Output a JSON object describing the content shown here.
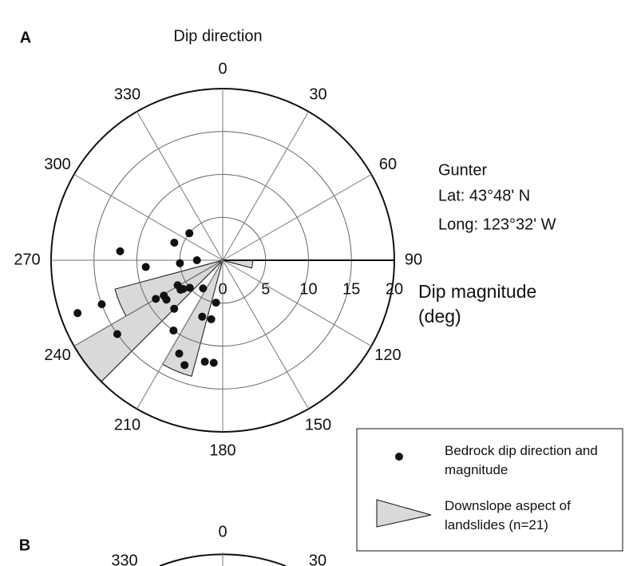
{
  "chart_data": {
    "type": "polar",
    "panel": "A",
    "title": "Dip direction",
    "theta_ticks": [
      0,
      30,
      60,
      90,
      120,
      150,
      180,
      210,
      240,
      270,
      300,
      330
    ],
    "rlim": [
      0,
      20
    ],
    "rticks": [
      0,
      5,
      10,
      15,
      20
    ],
    "r_label": "Dip magnitude (deg)",
    "annotations": [
      "Gunter",
      "Lat: 43°48' N",
      "Long: 123°32' W"
    ],
    "series": [
      {
        "name": "Bedrock dip direction and magnitude",
        "color": "#111111",
        "theta": [
          309,
          290,
          275,
          265,
          266,
          270,
          250,
          250,
          235,
          240,
          239,
          235,
          241,
          235,
          234,
          230,
          215,
          225,
          215,
          205,
          200,
          190,
          185,
          200,
          191,
          189
        ],
        "r": [
          5,
          6,
          12,
          9,
          5,
          3,
          18,
          15,
          15,
          9,
          8,
          8,
          6,
          6,
          5.7,
          5,
          4,
          8,
          10,
          12,
          13,
          12,
          12,
          7,
          7,
          5
        ]
      }
    ],
    "wedges": {
      "name": "Downslope aspect of landslides (n=21)",
      "color": "#d9d9d9",
      "bins": [
        [
          225,
          240
        ],
        [
          240,
          255
        ],
        [
          195,
          210
        ],
        [
          90,
          105
        ]
      ],
      "r": [
        20,
        13,
        14,
        3.5
      ]
    }
  },
  "panel_b": {
    "panel": "B",
    "theta_labels": [
      0,
      330,
      30
    ]
  }
}
